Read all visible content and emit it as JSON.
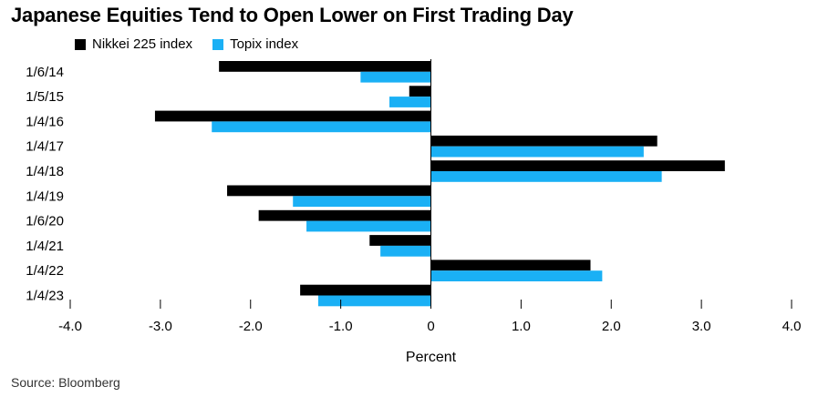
{
  "chart_data": {
    "type": "bar",
    "orientation": "horizontal",
    "title": "Japanese Equities Tend to Open Lower on First Trading Day",
    "xlabel": "Percent",
    "ylabel": "",
    "xlim": [
      -4.0,
      4.0
    ],
    "x_ticks": [
      -4.0,
      -3.0,
      -2.0,
      -1.0,
      0,
      1.0,
      2.0,
      3.0,
      4.0
    ],
    "x_tick_labels": [
      "-4.0",
      "-3.0",
      "-2.0",
      "-1.0",
      "0",
      "1.0",
      "2.0",
      "3.0",
      "4.0"
    ],
    "categories": [
      "1/6/14",
      "1/5/15",
      "1/4/16",
      "1/4/17",
      "1/4/18",
      "1/4/19",
      "1/6/20",
      "1/4/21",
      "1/4/22",
      "1/4/23"
    ],
    "series": [
      {
        "name": "Nikkei 225 index",
        "color": "#000000",
        "values": [
          -2.35,
          -0.24,
          -3.06,
          2.51,
          3.26,
          -2.26,
          -1.91,
          -0.68,
          1.77,
          -1.45
        ]
      },
      {
        "name": "Topix index",
        "color": "#1ab0f5",
        "values": [
          -0.78,
          -0.46,
          -2.43,
          2.36,
          2.56,
          -1.53,
          -1.38,
          -0.56,
          1.9,
          -1.25
        ]
      }
    ],
    "legend_position": "top-left",
    "grid": false
  },
  "source": "Source: Bloomberg"
}
